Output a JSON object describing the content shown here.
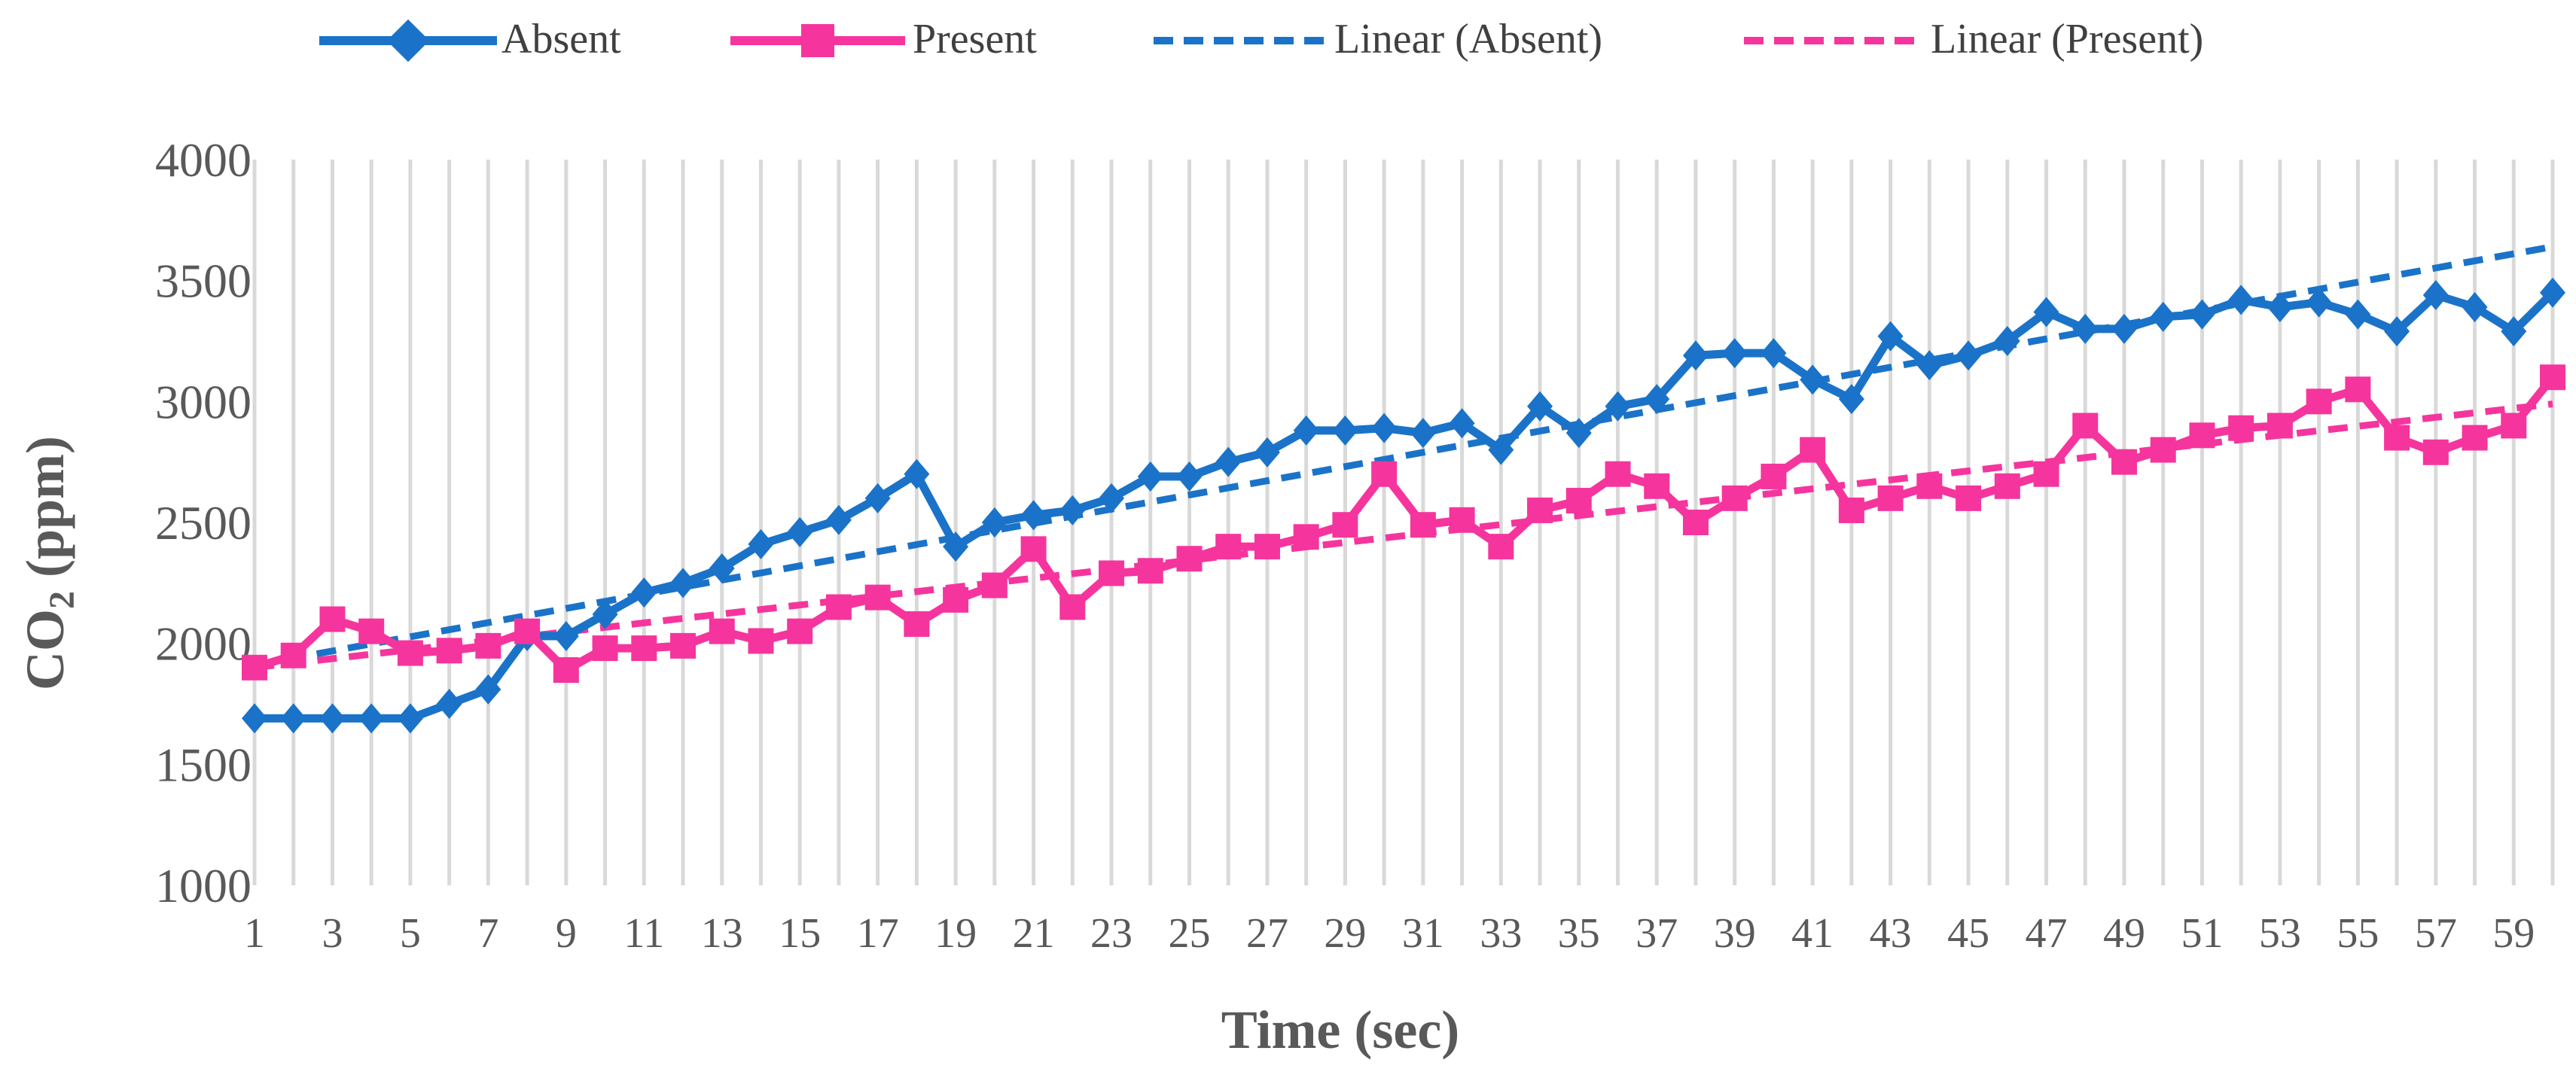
{
  "chart_data": {
    "type": "line",
    "title": "",
    "xlabel": "Time (sec)",
    "ylabel_main": "CO",
    "ylabel_sub": "2",
    "ylabel_unit": " (ppm)",
    "ylim": [
      1000,
      4000
    ],
    "yticks": [
      1000,
      1500,
      2000,
      2500,
      3000,
      3500,
      4000
    ],
    "x": [
      1,
      2,
      3,
      4,
      5,
      6,
      7,
      8,
      9,
      10,
      11,
      12,
      13,
      14,
      15,
      16,
      17,
      18,
      19,
      20,
      21,
      22,
      23,
      24,
      25,
      26,
      27,
      28,
      29,
      30,
      31,
      32,
      33,
      34,
      35,
      36,
      37,
      38,
      39,
      40,
      41,
      42,
      43,
      44,
      45,
      46,
      47,
      48,
      49,
      50,
      51,
      52,
      53,
      54,
      55,
      56,
      57,
      58,
      59,
      60
    ],
    "xtick_labels": [
      "1",
      "3",
      "5",
      "7",
      "9",
      "11",
      "13",
      "15",
      "17",
      "19",
      "21",
      "23",
      "25",
      "27",
      "29",
      "31",
      "33",
      "35",
      "37",
      "39",
      "41",
      "43",
      "45",
      "47",
      "49",
      "51",
      "53",
      "55",
      "57",
      "59"
    ],
    "grid": "vertical",
    "legend_position": "top",
    "series": [
      {
        "name": "Absent",
        "color": "#1a73c8",
        "marker": "diamond",
        "values": [
          1690,
          1690,
          1690,
          1690,
          1690,
          1750,
          1810,
          2030,
          2030,
          2120,
          2210,
          2250,
          2310,
          2410,
          2460,
          2510,
          2600,
          2700,
          2400,
          2500,
          2530,
          2550,
          2600,
          2690,
          2690,
          2750,
          2790,
          2880,
          2880,
          2890,
          2870,
          2910,
          2800,
          2980,
          2870,
          2980,
          3010,
          3190,
          3200,
          3200,
          3090,
          3010,
          3270,
          3150,
          3190,
          3250,
          3370,
          3300,
          3300,
          3350,
          3360,
          3420,
          3390,
          3410,
          3360,
          3290,
          3440,
          3390,
          3290,
          3450
        ]
      },
      {
        "name": "Present",
        "color": "#f5359d",
        "marker": "square",
        "values": [
          1900,
          1950,
          2100,
          2050,
          1960,
          1970,
          1990,
          2050,
          1890,
          1980,
          1980,
          1990,
          2050,
          2010,
          2050,
          2150,
          2190,
          2080,
          2180,
          2240,
          2390,
          2150,
          2290,
          2300,
          2350,
          2400,
          2400,
          2440,
          2490,
          2700,
          2490,
          2510,
          2400,
          2550,
          2590,
          2700,
          2650,
          2500,
          2600,
          2690,
          2800,
          2550,
          2600,
          2650,
          2600,
          2650,
          2700,
          2900,
          2750,
          2800,
          2860,
          2890,
          2900,
          3000,
          3050,
          2850,
          2790,
          2850,
          2900,
          3100
        ]
      }
    ],
    "trendlines": [
      {
        "name": "Linear (Absent)",
        "color": "#1a73c8",
        "style": "dashed",
        "start": 1910,
        "end": 3640
      },
      {
        "name": "Linear (Present)",
        "color": "#f5359d",
        "style": "dashed",
        "start": 1900,
        "end": 2990
      }
    ]
  }
}
